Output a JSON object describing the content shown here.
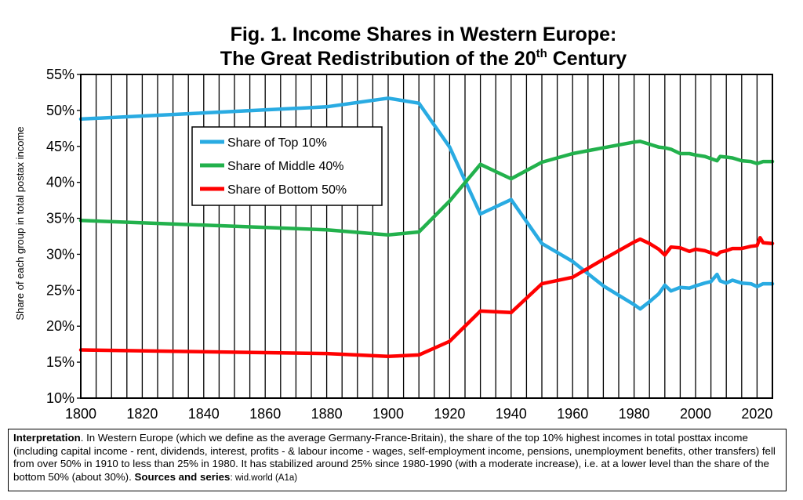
{
  "figure": {
    "title_line1": "Fig. 1. Income Shares in Western Europe:",
    "title_line2_pre": "The Great Redistribution of the 20",
    "title_line2_sup": "th",
    "title_line2_post": " Century"
  },
  "chart_data": {
    "type": "line",
    "ylabel": "Share of each group in total postax income",
    "xlabel": "",
    "xlim": [
      1800,
      2025
    ],
    "ylim": [
      10,
      55
    ],
    "x_ticks": [
      1800,
      1820,
      1840,
      1860,
      1880,
      1900,
      1920,
      1940,
      1960,
      1980,
      2000,
      2020
    ],
    "y_ticks": [
      "10%",
      "15%",
      "20%",
      "25%",
      "30%",
      "35%",
      "40%",
      "45%",
      "50%",
      "55%"
    ],
    "grid": "vertical-every-5-years",
    "legend_position": "upper-middle-left",
    "series": [
      {
        "name": "Share of Top 10%",
        "color": "#29abe2",
        "x": [
          1800,
          1880,
          1900,
          1910,
          1920,
          1930,
          1940,
          1950,
          1960,
          1970,
          1980,
          1982,
          1985,
          1988,
          1990,
          1992,
          1995,
          1998,
          2000,
          2003,
          2005,
          2007,
          2008,
          2010,
          2012,
          2015,
          2018,
          2020,
          2022,
          2025
        ],
        "values": [
          48.8,
          50.5,
          51.7,
          51.0,
          44.9,
          35.6,
          37.6,
          31.5,
          29.0,
          25.6,
          23.0,
          22.4,
          23.4,
          24.5,
          25.7,
          24.9,
          25.4,
          25.3,
          25.6,
          26.0,
          26.2,
          27.2,
          26.3,
          26.0,
          26.4,
          26.0,
          25.9,
          25.5,
          25.9,
          25.9
        ]
      },
      {
        "name": "Share of Middle 40%",
        "color": "#22b14c",
        "x": [
          1800,
          1880,
          1900,
          1910,
          1920,
          1930,
          1940,
          1950,
          1960,
          1970,
          1980,
          1982,
          1985,
          1988,
          1990,
          1992,
          1995,
          1998,
          2000,
          2003,
          2005,
          2007,
          2008,
          2010,
          2012,
          2015,
          2018,
          2020,
          2022,
          2025
        ],
        "values": [
          34.7,
          33.4,
          32.7,
          33.1,
          37.4,
          42.5,
          40.5,
          42.8,
          44.0,
          44.8,
          45.6,
          45.7,
          45.3,
          44.9,
          44.8,
          44.6,
          44.0,
          44.0,
          43.8,
          43.6,
          43.3,
          43.0,
          43.6,
          43.5,
          43.4,
          43.0,
          42.9,
          42.6,
          42.9,
          42.9
        ]
      },
      {
        "name": "Share of Bottom 50%",
        "color": "#ff0000",
        "x": [
          1800,
          1880,
          1900,
          1910,
          1920,
          1930,
          1940,
          1950,
          1960,
          1970,
          1980,
          1982,
          1985,
          1988,
          1990,
          1992,
          1995,
          1998,
          2000,
          2003,
          2005,
          2007,
          2008,
          2010,
          2012,
          2015,
          2018,
          2020,
          2021,
          2022,
          2025
        ],
        "values": [
          16.7,
          16.2,
          15.8,
          16.0,
          17.9,
          22.1,
          21.9,
          25.9,
          26.8,
          29.3,
          31.7,
          32.1,
          31.5,
          30.7,
          29.9,
          31.0,
          30.9,
          30.4,
          30.7,
          30.5,
          30.2,
          29.9,
          30.3,
          30.5,
          30.8,
          30.8,
          31.1,
          31.2,
          32.3,
          31.6,
          31.5
        ]
      }
    ]
  },
  "interpretation": {
    "label": "Interpretation",
    "text": ". In Western Europe (which we define as the average Germany-France-Britain), the share of the top 10% highest incomes in total posttax income (including capital income - rent, dividends, interest, profits - & labour income - wages, self-employment income, pensions, unemployment benefits, other transfers) fell from over 50% in 1910 to less than 25% in 1980. It has stabilized around 25% since 1980-1990 (with a moderate increase), i.e. at a lower level than the share of the bottom 50% (about 30%). ",
    "sources_label": "Sources and series",
    "sources_value": ": wid.world (A1a)"
  }
}
